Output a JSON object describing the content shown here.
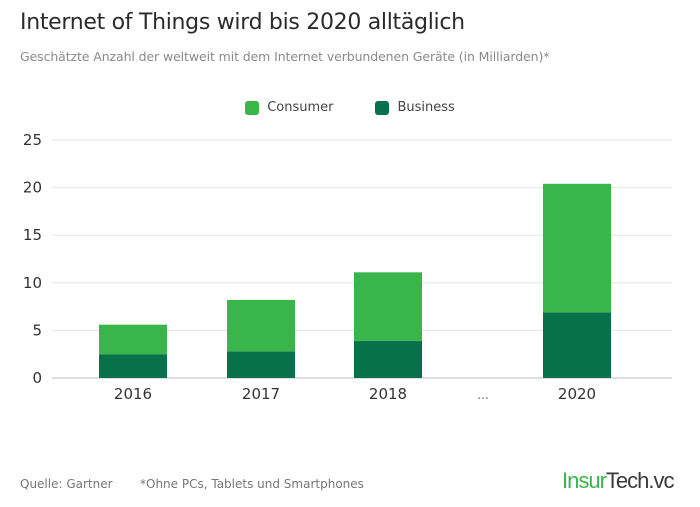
{
  "header": {
    "title": "Internet of Things wird bis 2020 alltäglich",
    "subtitle": "Geschätzte Anzahl der weltweit mit dem Internet verbundenen Geräte (in Milliarden)*"
  },
  "footer": {
    "source": "Quelle: Gartner",
    "note": "*Ohne PCs, Tablets und Smartphones",
    "logo_part1": "Insur",
    "logo_part2": "Tech.vc"
  },
  "chart_data": {
    "type": "bar",
    "stacked": true,
    "title": "Internet of Things wird bis 2020 alltäglich",
    "subtitle": "Geschätzte Anzahl der weltweit mit dem Internet verbundenen Geräte (in Milliarden)*",
    "xlabel": "",
    "ylabel": "",
    "categories": [
      "2016",
      "2017",
      "2018",
      "...",
      "2020"
    ],
    "series": [
      {
        "name": "Business",
        "color": "#06714a",
        "values": [
          2.5,
          2.8,
          3.9,
          null,
          6.9
        ]
      },
      {
        "name": "Consumer",
        "color": "#3ab54a",
        "values": [
          3.1,
          5.4,
          7.2,
          null,
          13.5
        ]
      }
    ],
    "legend": {
      "position": "top",
      "entries": [
        "Consumer",
        "Business"
      ]
    },
    "ylim": [
      0,
      25
    ],
    "yticks": [
      "0",
      "5",
      "10",
      "15",
      "20",
      "25"
    ],
    "grid": true
  }
}
